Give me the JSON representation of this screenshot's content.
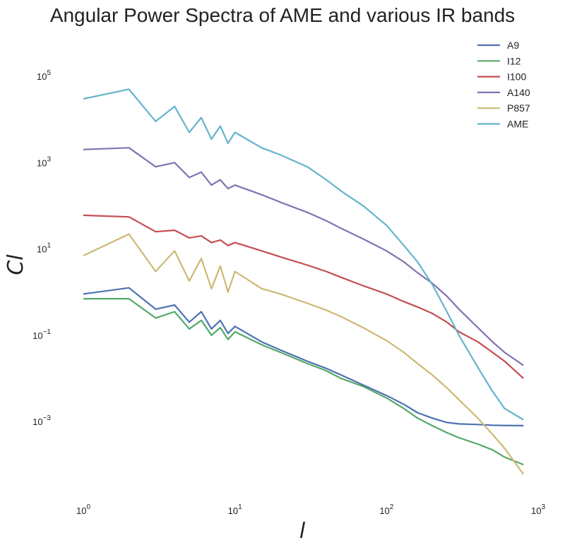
{
  "chart_data": {
    "type": "line",
    "title": "Angular Power Spectra of AME and various IR bands",
    "xlabel": "l",
    "ylabel": "Cl",
    "xscale": "log",
    "yscale": "log",
    "xlim": [
      0.8,
      1000
    ],
    "ylim": [
      2e-05,
      1000000
    ],
    "grid": false,
    "legend_position": "top-right",
    "x_ticks": [
      {
        "value": 1,
        "base": "10",
        "exp": "0"
      },
      {
        "value": 10,
        "base": "10",
        "exp": "1"
      },
      {
        "value": 100,
        "base": "10",
        "exp": "2"
      },
      {
        "value": 1000,
        "base": "10",
        "exp": "3"
      }
    ],
    "y_ticks": [
      {
        "value": 100000,
        "base": "10",
        "exp": "5"
      },
      {
        "value": 1000,
        "base": "10",
        "exp": "3"
      },
      {
        "value": 10,
        "base": "10",
        "exp": "1"
      },
      {
        "value": 0.1,
        "base": "10",
        "exp": "−1"
      },
      {
        "value": 0.001,
        "base": "10",
        "exp": "−3"
      }
    ],
    "series": [
      {
        "name": "A9",
        "color": "#4c72b0",
        "points": [
          [
            1,
            0.9
          ],
          [
            2,
            1.25
          ],
          [
            3,
            0.4
          ],
          [
            4,
            0.5
          ],
          [
            5,
            0.2
          ],
          [
            6,
            0.35
          ],
          [
            7,
            0.14
          ],
          [
            8,
            0.22
          ],
          [
            9,
            0.11
          ],
          [
            10,
            0.16
          ],
          [
            15,
            0.07
          ],
          [
            20,
            0.045
          ],
          [
            30,
            0.025
          ],
          [
            40,
            0.017
          ],
          [
            50,
            0.012
          ],
          [
            70,
            0.007
          ],
          [
            100,
            0.004
          ],
          [
            130,
            0.0025
          ],
          [
            160,
            0.0016
          ],
          [
            200,
            0.0012
          ],
          [
            250,
            0.00095
          ],
          [
            300,
            0.00088
          ],
          [
            400,
            0.00085
          ],
          [
            500,
            0.00082
          ],
          [
            600,
            0.00081
          ],
          [
            800,
            0.0008
          ]
        ]
      },
      {
        "name": "I12",
        "color": "#55a868",
        "points": [
          [
            1,
            0.7
          ],
          [
            2,
            0.7
          ],
          [
            3,
            0.25
          ],
          [
            4,
            0.35
          ],
          [
            5,
            0.14
          ],
          [
            6,
            0.22
          ],
          [
            7,
            0.1
          ],
          [
            8,
            0.15
          ],
          [
            9,
            0.08
          ],
          [
            10,
            0.12
          ],
          [
            15,
            0.06
          ],
          [
            20,
            0.04
          ],
          [
            30,
            0.022
          ],
          [
            40,
            0.015
          ],
          [
            50,
            0.01
          ],
          [
            70,
            0.0065
          ],
          [
            100,
            0.0035
          ],
          [
            130,
            0.002
          ],
          [
            160,
            0.0012
          ],
          [
            200,
            0.0008
          ],
          [
            250,
            0.00055
          ],
          [
            300,
            0.00042
          ],
          [
            400,
            0.0003
          ],
          [
            500,
            0.00022
          ],
          [
            600,
            0.00015
          ],
          [
            800,
            0.0001
          ]
        ]
      },
      {
        "name": "I100",
        "color": "#c44e52",
        "points": [
          [
            1,
            60
          ],
          [
            2,
            55
          ],
          [
            3,
            25
          ],
          [
            4,
            27
          ],
          [
            5,
            18
          ],
          [
            6,
            20
          ],
          [
            7,
            14
          ],
          [
            8,
            16
          ],
          [
            9,
            12
          ],
          [
            10,
            14
          ],
          [
            15,
            9
          ],
          [
            20,
            6.5
          ],
          [
            30,
            4.2
          ],
          [
            40,
            3
          ],
          [
            50,
            2.2
          ],
          [
            70,
            1.4
          ],
          [
            100,
            0.9
          ],
          [
            130,
            0.6
          ],
          [
            160,
            0.45
          ],
          [
            200,
            0.32
          ],
          [
            250,
            0.2
          ],
          [
            300,
            0.12
          ],
          [
            400,
            0.07
          ],
          [
            500,
            0.04
          ],
          [
            600,
            0.025
          ],
          [
            800,
            0.01
          ]
        ]
      },
      {
        "name": "A140",
        "color": "#8172b2",
        "points": [
          [
            1,
            2000
          ],
          [
            2,
            2200
          ],
          [
            3,
            800
          ],
          [
            4,
            1000
          ],
          [
            5,
            450
          ],
          [
            6,
            600
          ],
          [
            7,
            300
          ],
          [
            8,
            400
          ],
          [
            9,
            250
          ],
          [
            10,
            300
          ],
          [
            15,
            180
          ],
          [
            20,
            120
          ],
          [
            30,
            70
          ],
          [
            40,
            45
          ],
          [
            50,
            30
          ],
          [
            70,
            17
          ],
          [
            100,
            9
          ],
          [
            130,
            5
          ],
          [
            160,
            2.8
          ],
          [
            200,
            1.6
          ],
          [
            250,
            0.8
          ],
          [
            300,
            0.4
          ],
          [
            400,
            0.15
          ],
          [
            500,
            0.07
          ],
          [
            600,
            0.04
          ],
          [
            800,
            0.02
          ]
        ]
      },
      {
        "name": "P857",
        "color": "#ccb974",
        "points": [
          [
            1,
            7
          ],
          [
            2,
            22
          ],
          [
            3,
            3
          ],
          [
            4,
            9
          ],
          [
            5,
            1.8
          ],
          [
            6,
            6
          ],
          [
            7,
            1.2
          ],
          [
            8,
            4
          ],
          [
            9,
            1
          ],
          [
            10,
            3
          ],
          [
            15,
            1.2
          ],
          [
            20,
            0.9
          ],
          [
            30,
            0.55
          ],
          [
            40,
            0.38
          ],
          [
            50,
            0.27
          ],
          [
            70,
            0.15
          ],
          [
            100,
            0.075
          ],
          [
            130,
            0.04
          ],
          [
            160,
            0.022
          ],
          [
            200,
            0.012
          ],
          [
            250,
            0.006
          ],
          [
            300,
            0.0032
          ],
          [
            400,
            0.0012
          ],
          [
            500,
            0.0005
          ],
          [
            600,
            0.00024
          ],
          [
            800,
            6e-05
          ]
        ]
      },
      {
        "name": "AME",
        "color": "#64b5cd",
        "points": [
          [
            1,
            30000
          ],
          [
            2,
            50000
          ],
          [
            3,
            9000
          ],
          [
            4,
            20000
          ],
          [
            5,
            5000
          ],
          [
            6,
            11000
          ],
          [
            7,
            3500
          ],
          [
            8,
            7000
          ],
          [
            9,
            2800
          ],
          [
            10,
            5000
          ],
          [
            15,
            2200
          ],
          [
            20,
            1500
          ],
          [
            30,
            800
          ],
          [
            40,
            400
          ],
          [
            50,
            220
          ],
          [
            70,
            100
          ],
          [
            100,
            35
          ],
          [
            130,
            12
          ],
          [
            160,
            5
          ],
          [
            200,
            1.5
          ],
          [
            250,
            0.35
          ],
          [
            300,
            0.1
          ],
          [
            400,
            0.018
          ],
          [
            500,
            0.005
          ],
          [
            600,
            0.002
          ],
          [
            800,
            0.0011
          ]
        ]
      }
    ]
  }
}
